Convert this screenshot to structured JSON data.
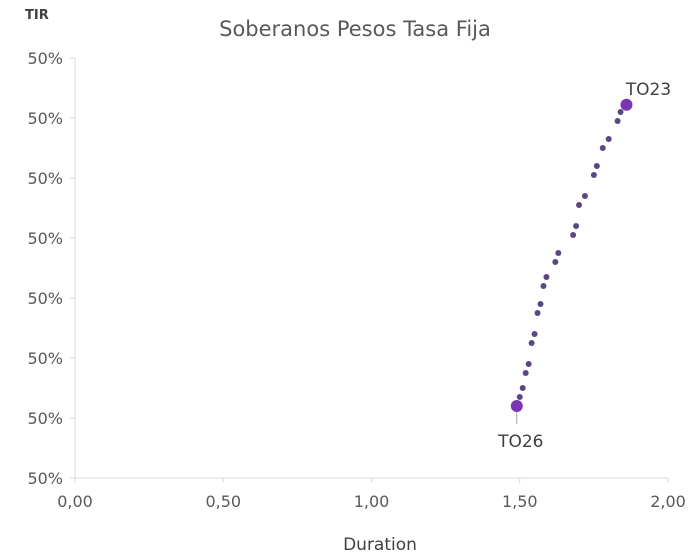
{
  "chart_data": {
    "type": "scatter",
    "title": "Soberanos Pesos Tasa Fija",
    "xlabel": "Duration",
    "ylabel": "TIR",
    "xlim": [
      0,
      2
    ],
    "ylim": [
      0,
      7
    ],
    "grid": false,
    "x_ticks": [
      "0,00",
      "0,50",
      "1,00",
      "1,50",
      "2,00"
    ],
    "y_ticks": [
      "50%",
      "50%",
      "50%",
      "50%",
      "50%",
      "50%",
      "50%",
      "50%"
    ],
    "colors": {
      "trail": "#5b4785",
      "highlight": "#7a35b5",
      "axis": "#d9d9d9",
      "leader": "#a6a6a6"
    },
    "series": [
      {
        "points": [
          {
            "x": 1.49,
            "y": 1.2
          },
          {
            "x": 1.5,
            "y": 1.35
          },
          {
            "x": 1.51,
            "y": 1.5
          },
          {
            "x": 1.52,
            "y": 1.75
          },
          {
            "x": 1.53,
            "y": 1.9
          },
          {
            "x": 1.54,
            "y": 2.25
          },
          {
            "x": 1.55,
            "y": 2.4
          },
          {
            "x": 1.56,
            "y": 2.75
          },
          {
            "x": 1.57,
            "y": 2.9
          },
          {
            "x": 1.58,
            "y": 3.2
          },
          {
            "x": 1.59,
            "y": 3.35
          },
          {
            "x": 1.62,
            "y": 3.6
          },
          {
            "x": 1.63,
            "y": 3.75
          },
          {
            "x": 1.68,
            "y": 4.05
          },
          {
            "x": 1.69,
            "y": 4.2
          },
          {
            "x": 1.7,
            "y": 4.55
          },
          {
            "x": 1.72,
            "y": 4.7
          },
          {
            "x": 1.75,
            "y": 5.05
          },
          {
            "x": 1.76,
            "y": 5.2
          },
          {
            "x": 1.78,
            "y": 5.5
          },
          {
            "x": 1.8,
            "y": 5.65
          },
          {
            "x": 1.83,
            "y": 5.95
          },
          {
            "x": 1.84,
            "y": 6.1
          }
        ]
      }
    ],
    "highlights": [
      {
        "label": "TO23",
        "x": 1.86,
        "y": 6.22
      },
      {
        "label": "TO26",
        "x": 1.49,
        "y": 1.2
      }
    ]
  }
}
